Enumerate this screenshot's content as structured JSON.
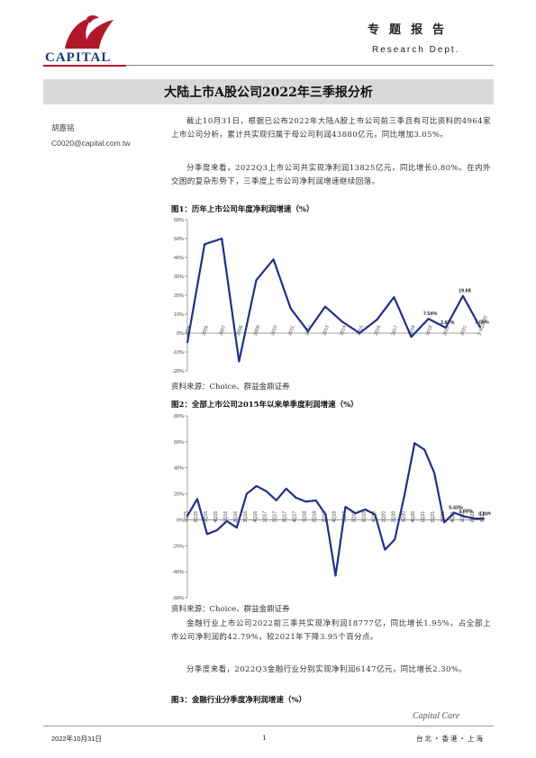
{
  "header": {
    "logo_text": "CAPITAL",
    "report_type": "专题报告",
    "dept": "Research Dept."
  },
  "title": "大陆上市A股公司2022年三季报分析",
  "author": {
    "name": "胡嘉铭",
    "email": "C0020@capital.com.tw"
  },
  "paragraphs": [
    "截止10月31日，根据已公布2022年大陆A股上市公司前三季且有可比资料的4964家上市公司分析，累计共实现归属于母公司利润43880亿元，同比增加3.05%。",
    "分季度来看，2022Q3上市公司共实现净利润13825亿元，同比增长0.80%。在内外交困的复杂形势下，三季度上市公司净利润增速继续回落。",
    "金融行业上市公司2022前三季共实现净利润18777亿，同比增长1.95%，占全部上市公司净利润的42.79%，较2021年下降3.95个百分点。",
    "分季度来看，2022Q3金融行业分别实现净利润6147亿元，同比增长2.30%。"
  ],
  "figures": {
    "fig1_title": "图1：历年上市公司年度净利润增速（%）",
    "fig2_title": "图2：全部上市公司2015年以来单季度利润增速（%）",
    "fig3_title": "图3：金融行业分季度净利润增速（%）",
    "source": "资料来源：Choice、群益金鼎证券"
  },
  "chart_data": [
    {
      "type": "line",
      "title": "图1：历年上市公司年度净利润增速（%）",
      "color": "#1f2f8f",
      "x": [
        "2005",
        "2006",
        "2007",
        "2008",
        "2009",
        "2010",
        "2011",
        "2012",
        "2013",
        "2014",
        "2015",
        "2016",
        "2017",
        "2018",
        "2019",
        "2020",
        "2021",
        "1-3Q2022"
      ],
      "values": [
        -5,
        47,
        50,
        -15,
        28,
        39,
        13,
        1,
        14,
        6,
        0,
        7,
        19,
        -2,
        7.54,
        2.87,
        19.68,
        3.05
      ],
      "ylim": [
        -20,
        60
      ],
      "yticks": [
        "-20%",
        "-10%",
        "0%",
        "10%",
        "20%",
        "30%",
        "40%",
        "50%",
        "60%"
      ],
      "data_labels": {
        "15": "2.87%",
        "14": "7.54%",
        "16": "19.68",
        "17": "3.05%"
      }
    },
    {
      "type": "line",
      "title": "图2：全部上市公司2015年以来单季度利润增速（%）",
      "color": "#1f2f8f",
      "x": [
        "1Q15",
        "2Q15",
        "3Q15",
        "4Q15",
        "1Q16",
        "2Q16",
        "3Q16",
        "4Q16",
        "1Q17",
        "2Q17",
        "3Q17",
        "4Q17",
        "1Q18",
        "2Q18",
        "3Q18",
        "4Q18",
        "1Q19",
        "2Q19",
        "3Q19",
        "4Q19",
        "1Q20",
        "2Q20",
        "3Q20",
        "4Q20",
        "1Q21",
        "2Q21",
        "3Q21",
        "4Q21",
        "1Q22",
        "2Q22",
        "3Q22"
      ],
      "values": [
        3,
        16,
        -11,
        -8,
        -1,
        -6,
        20,
        26,
        22,
        15,
        24,
        17,
        14,
        15,
        4,
        -43,
        10,
        5,
        8,
        4,
        -23,
        -15,
        20,
        59,
        54,
        36,
        -2,
        5.43,
        2.68,
        1,
        0.8
      ],
      "ylim": [
        -60,
        80
      ],
      "yticks": [
        "-60%",
        "-40%",
        "-20%",
        "0%",
        "20%",
        "40%",
        "60%",
        "80%"
      ],
      "data_labels": {
        "27": "5.43%",
        "28": "2.68%",
        "30": "0.80%"
      }
    }
  ]
}
